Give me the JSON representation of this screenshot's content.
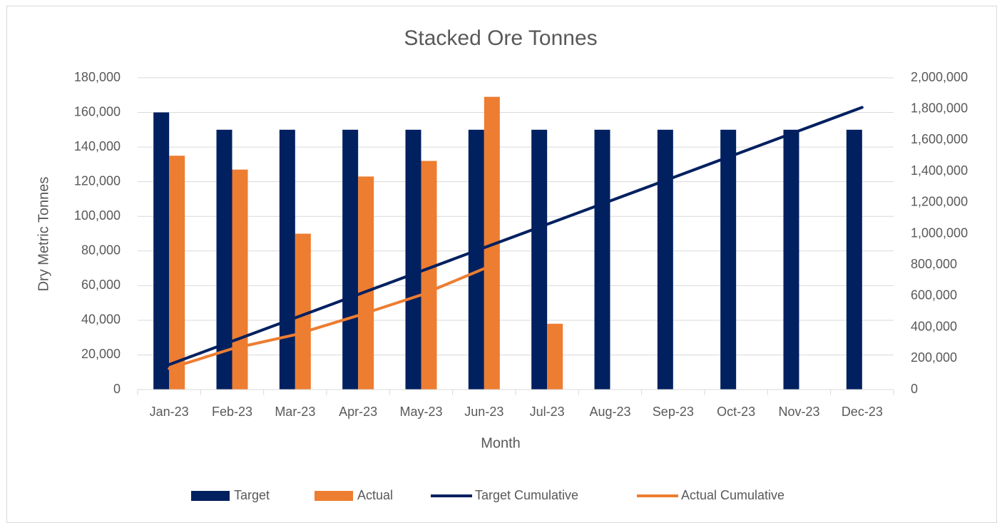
{
  "chart_data": {
    "type": "bar",
    "title": "Stacked Ore Tonnes",
    "x_label": "Month",
    "y_label": "Dry Metric Tonnes",
    "categories": [
      "Jan-23",
      "Feb-23",
      "Mar-23",
      "Apr-23",
      "May-23",
      "Jun-23",
      "Jul-23",
      "Aug-23",
      "Sep-23",
      "Oct-23",
      "Nov-23",
      "Dec-23"
    ],
    "series": [
      {
        "name": "Target",
        "type": "bar",
        "color": "#002060",
        "values": [
          160000,
          150000,
          150000,
          150000,
          150000,
          150000,
          150000,
          150000,
          150000,
          150000,
          150000,
          150000
        ]
      },
      {
        "name": "Actual",
        "type": "bar",
        "color": "#ED7D31",
        "values": [
          135000,
          127000,
          90000,
          123000,
          132000,
          169000,
          38000,
          null,
          null,
          null,
          null,
          null
        ]
      },
      {
        "name": "Target Cumulative",
        "type": "line",
        "axis": "y2",
        "color": "#002060",
        "values": [
          160000,
          310000,
          460000,
          610000,
          760000,
          910000,
          1060000,
          1210000,
          1360000,
          1510000,
          1660000,
          1810000
        ]
      },
      {
        "name": "Actual Cumulative",
        "type": "line",
        "axis": "y2",
        "color": "#ED7D31",
        "values": [
          135000,
          262000,
          352000,
          475000,
          607000,
          776000,
          null,
          null,
          null,
          null,
          null,
          null
        ]
      }
    ],
    "ylim": [
      0,
      180000
    ],
    "yticks": [
      0,
      {
        "value": 20000,
        "label": "20,000"
      },
      {
        "value": 40000,
        "label": "40,000"
      },
      {
        "value": 60000,
        "label": "60,000"
      },
      {
        "value": 80000,
        "label": "80,000"
      },
      {
        "value": 100000,
        "label": "100,000"
      },
      {
        "value": 120000,
        "label": "120,000"
      },
      {
        "value": 140000,
        "label": "140,000"
      },
      {
        "value": 160000,
        "label": "160,000"
      },
      {
        "value": 180000,
        "label": "180,000"
      }
    ],
    "y2lim": [
      0,
      2000000
    ],
    "y2ticks": [
      0,
      {
        "value": 200000,
        "label": "200,000"
      },
      {
        "value": 400000,
        "label": "400,000"
      },
      {
        "value": 600000,
        "label": "600,000"
      },
      {
        "value": 800000,
        "label": "800,000"
      },
      {
        "value": 1000000,
        "label": "1,000,000"
      },
      {
        "value": 1200000,
        "label": "1,200,000"
      },
      {
        "value": 1400000,
        "label": "1,400,000"
      },
      {
        "value": 1600000,
        "label": "1,600,000"
      },
      {
        "value": 1800000,
        "label": "1,800,000"
      },
      {
        "value": 2000000,
        "label": "2,000,000"
      }
    ],
    "grid": true,
    "legend": "bottom"
  }
}
